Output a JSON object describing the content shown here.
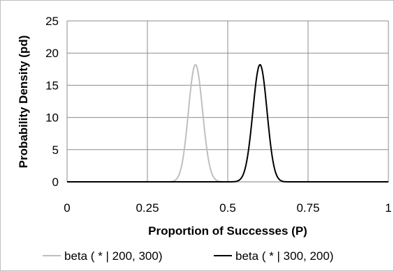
{
  "chart_data": {
    "type": "line",
    "xlabel": "Proportion of Successes (P)",
    "ylabel": "Probability Density (pd)",
    "xlim": [
      0,
      1
    ],
    "ylim": [
      0,
      25
    ],
    "x_ticks": [
      0,
      0.25,
      0.5,
      0.75,
      1
    ],
    "x_tick_labels": [
      "0",
      "0.25",
      "0.5",
      "0.75",
      "1"
    ],
    "y_ticks": [
      0,
      5,
      10,
      15,
      20,
      25
    ],
    "y_tick_labels": [
      "0",
      "5",
      "10",
      "15",
      "20",
      "25"
    ],
    "grid": true,
    "legend_position": "bottom",
    "x": [
      0.3,
      0.32,
      0.34,
      0.36,
      0.38,
      0.4,
      0.42,
      0.44,
      0.46,
      0.48,
      0.5,
      0.52,
      0.54,
      0.56,
      0.58,
      0.6,
      0.62,
      0.64,
      0.66,
      0.68,
      0.7
    ],
    "series": [
      {
        "name": "beta ( * | 200, 300)",
        "color": "#bfbfbf",
        "values": [
          0.0,
          0.02,
          0.36,
          2.7,
          9.6,
          18.2,
          13.5,
          4.1,
          0.56,
          0.03,
          0.0,
          0.0,
          0.0,
          0.0,
          0.0,
          0.0,
          0.0,
          0.0,
          0.0,
          0.0,
          0.0
        ]
      },
      {
        "name": "beta ( * | 300, 200)",
        "color": "#000000",
        "values": [
          0.0,
          0.0,
          0.0,
          0.0,
          0.0,
          0.0,
          0.0,
          0.0,
          0.0,
          0.0,
          0.0,
          0.03,
          0.56,
          4.1,
          13.5,
          18.2,
          9.6,
          2.7,
          0.36,
          0.02,
          0.0
        ]
      }
    ]
  }
}
